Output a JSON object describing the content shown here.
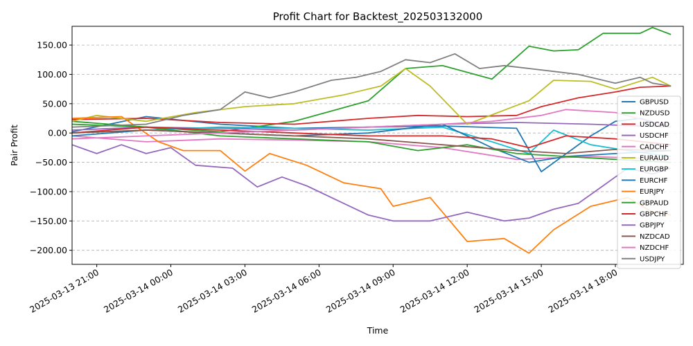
{
  "chart_data": {
    "type": "line",
    "title": "Profit Chart for Backtest_202503132000",
    "xlabel": "Time",
    "ylabel": "Pair Profit",
    "ylim": [
      -224,
      182
    ],
    "xlim": [
      "2025-03-13 20:00",
      "2025-03-14 20:45"
    ],
    "yticks": [
      150,
      100,
      50,
      0,
      -50,
      -100,
      -150,
      -200
    ],
    "ytick_labels": [
      "150.00",
      "100.00",
      "50.00",
      "0.00",
      "−50.00",
      "−100.00",
      "−150.00",
      "−200.00"
    ],
    "xticks": [
      "2025-03-13 21:00",
      "2025-03-14 00:00",
      "2025-03-14 03:00",
      "2025-03-14 06:00",
      "2025-03-14 09:00",
      "2025-03-14 12:00",
      "2025-03-14 15:00",
      "2025-03-14 18:00"
    ],
    "xtick_labels": [
      "2025-03-13 21:00",
      "2025-03-14 00:00",
      "2025-03-14 03:00",
      "2025-03-14 06:00",
      "2025-03-14 09:00",
      "2025-03-14 12:00",
      "2025-03-14 15:00",
      "2025-03-14 18:00"
    ],
    "grid": "horizontal-dashed",
    "legend_position": "lower-right",
    "series": [
      {
        "name": "GBPUSD",
        "color": "#1f77b4",
        "x": [
          "2025-03-13 20:00",
          "2025-03-13 23:00",
          "2025-03-14 02:00",
          "2025-03-14 05:00",
          "2025-03-14 08:00",
          "2025-03-14 11:00",
          "2025-03-14 14:00",
          "2025-03-14 15:00",
          "2025-03-14 17:00",
          "2025-03-14 18:00",
          "2025-03-14 19:00",
          "2025-03-14 20:15"
        ],
        "y": [
          2,
          28,
          15,
          8,
          10,
          12,
          8,
          -66,
          -5,
          20,
          25,
          10
        ]
      },
      {
        "name": "NZDUSD",
        "color": "#2ca02c",
        "x": [
          "2025-03-13 20:00",
          "2025-03-13 23:00",
          "2025-03-14 02:00",
          "2025-03-14 05:00",
          "2025-03-14 08:00",
          "2025-03-14 09:30",
          "2025-03-14 11:00",
          "2025-03-14 13:00",
          "2025-03-14 14:30",
          "2025-03-14 15:30",
          "2025-03-14 16:30",
          "2025-03-14 17:30",
          "2025-03-14 19:00",
          "2025-03-14 19:30",
          "2025-03-14 20:15"
        ],
        "y": [
          20,
          10,
          2,
          20,
          55,
          110,
          115,
          92,
          148,
          140,
          142,
          170,
          170,
          180,
          168
        ]
      },
      {
        "name": "USDCAD",
        "color": "#d62728",
        "x": [
          "2025-03-13 20:00",
          "2025-03-13 23:00",
          "2025-03-14 02:00",
          "2025-03-14 05:00",
          "2025-03-14 08:00",
          "2025-03-14 10:00",
          "2025-03-14 12:00",
          "2025-03-14 14:00",
          "2025-03-14 15:00",
          "2025-03-14 16:30",
          "2025-03-14 18:00",
          "2025-03-14 19:00",
          "2025-03-14 20:15"
        ],
        "y": [
          23,
          25,
          18,
          15,
          25,
          30,
          28,
          30,
          45,
          60,
          70,
          78,
          80
        ]
      },
      {
        "name": "USDCHF",
        "color": "#9467bd",
        "x": [
          "2025-03-13 20:00",
          "2025-03-13 23:00",
          "2025-03-14 02:00",
          "2025-03-14 05:00",
          "2025-03-14 08:00",
          "2025-03-14 11:00",
          "2025-03-14 14:00",
          "2025-03-14 17:00",
          "2025-03-14 20:15"
        ],
        "y": [
          5,
          10,
          8,
          5,
          10,
          15,
          18,
          15,
          10
        ]
      },
      {
        "name": "CADCHF",
        "color": "#e377c2",
        "x": [
          "2025-03-13 20:00",
          "2025-03-13 23:00",
          "2025-03-14 02:00",
          "2025-03-14 05:00",
          "2025-03-14 08:00",
          "2025-03-14 11:00",
          "2025-03-14 14:00",
          "2025-03-14 17:00",
          "2025-03-14 20:15"
        ],
        "y": [
          -5,
          -15,
          -10,
          -12,
          -15,
          -25,
          -45,
          -40,
          -45
        ]
      },
      {
        "name": "EURAUD",
        "color": "#bcbd22",
        "x": [
          "2025-03-13 20:00",
          "2025-03-13 21:00",
          "2025-03-13 23:00",
          "2025-03-14 01:00",
          "2025-03-14 03:00",
          "2025-03-14 05:00",
          "2025-03-14 07:00",
          "2025-03-14 08:30",
          "2025-03-14 09:30",
          "2025-03-14 10:30",
          "2025-03-14 12:00",
          "2025-03-14 14:30",
          "2025-03-14 15:30",
          "2025-03-14 17:00",
          "2025-03-14 18:00",
          "2025-03-14 19:30",
          "2025-03-14 20:15"
        ],
        "y": [
          20,
          30,
          20,
          35,
          45,
          50,
          65,
          80,
          110,
          80,
          15,
          55,
          90,
          88,
          75,
          95,
          80
        ]
      },
      {
        "name": "EURGBP",
        "color": "#17becf",
        "x": [
          "2025-03-13 20:00",
          "2025-03-13 23:00",
          "2025-03-14 02:00",
          "2025-03-14 05:00",
          "2025-03-14 08:00",
          "2025-03-14 11:00",
          "2025-03-14 13:00",
          "2025-03-14 14:30",
          "2025-03-14 15:30",
          "2025-03-14 17:00",
          "2025-03-14 18:30",
          "2025-03-14 20:15"
        ],
        "y": [
          0,
          5,
          10,
          8,
          5,
          10,
          -15,
          -35,
          5,
          -20,
          -30,
          -40
        ]
      },
      {
        "name": "EURCHF",
        "color": "#1f77b4",
        "x": [
          "2025-03-13 20:00",
          "2025-03-13 23:00",
          "2025-03-14 02:00",
          "2025-03-14 05:00",
          "2025-03-14 08:00",
          "2025-03-14 11:00",
          "2025-03-14 13:00",
          "2025-03-14 14:30",
          "2025-03-14 16:00",
          "2025-03-14 18:00",
          "2025-03-14 20:15"
        ],
        "y": [
          -5,
          5,
          0,
          -5,
          0,
          15,
          -25,
          -50,
          -40,
          -35,
          -30
        ]
      },
      {
        "name": "EURJPY",
        "color": "#ff7f0e",
        "x": [
          "2025-03-13 20:00",
          "2025-03-13 22:00",
          "2025-03-13 23:30",
          "2025-03-14 00:30",
          "2025-03-14 02:00",
          "2025-03-14 03:00",
          "2025-03-14 04:00",
          "2025-03-14 05:30",
          "2025-03-14 07:00",
          "2025-03-14 08:30",
          "2025-03-14 09:00",
          "2025-03-14 10:30",
          "2025-03-14 12:00",
          "2025-03-14 13:30",
          "2025-03-14 14:30",
          "2025-03-14 15:30",
          "2025-03-14 17:00",
          "2025-03-14 18:30",
          "2025-03-14 19:30",
          "2025-03-14 20:15"
        ],
        "y": [
          25,
          28,
          -15,
          -30,
          -30,
          -65,
          -35,
          -55,
          -85,
          -95,
          -125,
          -110,
          -185,
          -180,
          -205,
          -165,
          -125,
          -110,
          -135,
          -140
        ]
      },
      {
        "name": "GBPAUD",
        "color": "#2ca02c",
        "x": [
          "2025-03-13 20:00",
          "2025-03-13 23:00",
          "2025-03-14 02:00",
          "2025-03-14 05:00",
          "2025-03-14 08:00",
          "2025-03-14 10:00",
          "2025-03-14 12:00",
          "2025-03-14 14:00",
          "2025-03-14 16:00",
          "2025-03-14 18:00",
          "2025-03-14 20:15"
        ],
        "y": [
          15,
          10,
          -5,
          -10,
          -15,
          -30,
          -20,
          -35,
          -40,
          -45,
          -50
        ]
      },
      {
        "name": "GBPCHF",
        "color": "#d62728",
        "x": [
          "2025-03-13 20:00",
          "2025-03-13 23:00",
          "2025-03-14 02:00",
          "2025-03-14 05:00",
          "2025-03-14 08:00",
          "2025-03-14 11:00",
          "2025-03-14 13:00",
          "2025-03-14 14:30",
          "2025-03-14 16:00",
          "2025-03-14 18:00",
          "2025-03-14 20:15"
        ],
        "y": [
          0,
          10,
          5,
          0,
          -5,
          -5,
          -10,
          -25,
          -5,
          -10,
          -20
        ]
      },
      {
        "name": "GBPJPY",
        "color": "#9467bd",
        "x": [
          "2025-03-13 20:00",
          "2025-03-13 21:00",
          "2025-03-13 22:00",
          "2025-03-13 23:00",
          "2025-03-14 00:00",
          "2025-03-14 01:00",
          "2025-03-14 02:30",
          "2025-03-14 03:30",
          "2025-03-14 04:30",
          "2025-03-14 05:30",
          "2025-03-14 07:00",
          "2025-03-14 08:00",
          "2025-03-14 09:00",
          "2025-03-14 10:30",
          "2025-03-14 12:00",
          "2025-03-14 13:30",
          "2025-03-14 14:30",
          "2025-03-14 15:30",
          "2025-03-14 16:30",
          "2025-03-14 17:30",
          "2025-03-14 18:30",
          "2025-03-14 19:30",
          "2025-03-14 20:15"
        ],
        "y": [
          -20,
          -35,
          -20,
          -35,
          -25,
          -55,
          -60,
          -92,
          -75,
          -90,
          -120,
          -140,
          -150,
          -150,
          -135,
          -150,
          -145,
          -130,
          -120,
          -90,
          -60,
          -70,
          -60
        ]
      },
      {
        "name": "NZDCAD",
        "color": "#8c564b",
        "x": [
          "2025-03-13 20:00",
          "2025-03-13 23:00",
          "2025-03-14 02:00",
          "2025-03-14 05:00",
          "2025-03-14 08:00",
          "2025-03-14 11:00",
          "2025-03-14 14:00",
          "2025-03-14 16:00",
          "2025-03-14 18:00",
          "2025-03-14 20:15"
        ],
        "y": [
          0,
          5,
          0,
          -5,
          -10,
          -20,
          -30,
          -35,
          -28,
          -30
        ]
      },
      {
        "name": "NZDCHF",
        "color": "#e377c2",
        "x": [
          "2025-03-13 20:00",
          "2025-03-13 23:00",
          "2025-03-14 02:00",
          "2025-03-14 05:00",
          "2025-03-14 08:00",
          "2025-03-14 11:00",
          "2025-03-14 13:00",
          "2025-03-14 15:00",
          "2025-03-14 16:00",
          "2025-03-14 18:00",
          "2025-03-14 20:15"
        ],
        "y": [
          -10,
          -5,
          0,
          5,
          10,
          15,
          20,
          30,
          40,
          35,
          10
        ]
      },
      {
        "name": "USDJPY",
        "color": "#7f7f7f",
        "x": [
          "2025-03-13 20:00",
          "2025-03-13 23:00",
          "2025-03-14 00:30",
          "2025-03-14 02:00",
          "2025-03-14 03:00",
          "2025-03-14 04:00",
          "2025-03-14 05:00",
          "2025-03-14 06:30",
          "2025-03-14 07:30",
          "2025-03-14 08:30",
          "2025-03-14 09:30",
          "2025-03-14 10:30",
          "2025-03-14 11:30",
          "2025-03-14 12:30",
          "2025-03-14 13:30",
          "2025-03-14 14:30",
          "2025-03-14 15:30",
          "2025-03-14 16:30",
          "2025-03-14 17:30",
          "2025-03-14 18:00",
          "2025-03-14 19:00",
          "2025-03-14 19:30",
          "2025-03-14 20:15"
        ],
        "y": [
          10,
          15,
          30,
          40,
          70,
          60,
          70,
          90,
          95,
          105,
          125,
          120,
          135,
          110,
          115,
          110,
          105,
          100,
          90,
          85,
          95,
          85,
          80
        ]
      }
    ]
  }
}
